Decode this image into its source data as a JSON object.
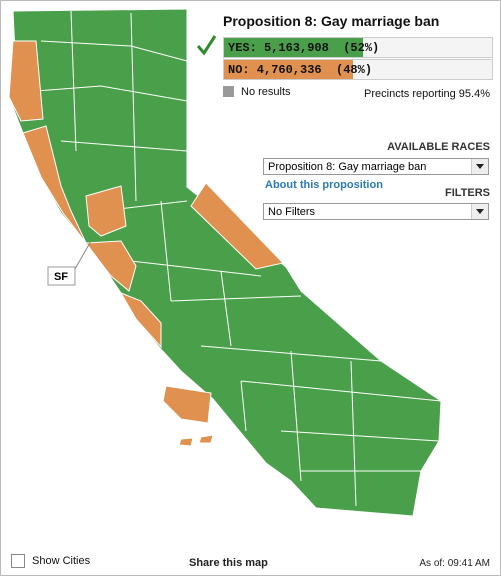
{
  "title": "Proposition 8: Gay marriage ban",
  "results": [
    {
      "text": "YES: 5,163,908",
      "percent": 52,
      "percent_label": "(52%)",
      "color": "#4aa04a"
    },
    {
      "text": "NO: 4,760,336",
      "percent": 48,
      "percent_label": "(48%)",
      "color": "#e0914f"
    }
  ],
  "legend": {
    "no_results": "No results"
  },
  "precincts": "Precincts reporting 95.4%",
  "available_races": {
    "heading": "AVAILABLE RACES",
    "selected": "Proposition 8: Gay marriage ban",
    "link": "About this proposition"
  },
  "filters": {
    "heading": "FILTERS",
    "selected": "No Filters"
  },
  "map_label": "SF",
  "footer": {
    "show_cities": "Show Cities",
    "share": "Share this map",
    "as_of": "As of: 09:41 AM"
  }
}
